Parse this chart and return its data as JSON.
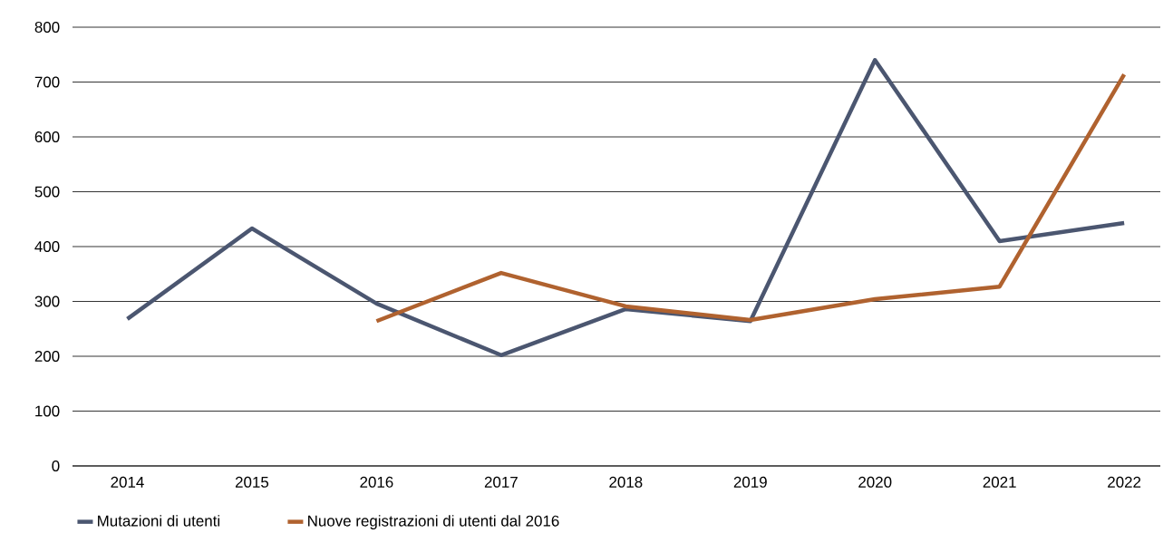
{
  "chart_data": {
    "type": "line",
    "categories": [
      "2014",
      "2015",
      "2016",
      "2017",
      "2018",
      "2019",
      "2020",
      "2021",
      "2022"
    ],
    "series": [
      {
        "name": "Mutazioni di utenti",
        "color": "#4b5670",
        "values": [
          268,
          433,
          296,
          202,
          286,
          264,
          740,
          410,
          443
        ]
      },
      {
        "name": "Nuove registrazioni di utenti dal 2016",
        "color": "#b0622f",
        "values": [
          null,
          null,
          264,
          352,
          291,
          266,
          304,
          327,
          714
        ]
      }
    ],
    "ylim": [
      0,
      800
    ],
    "yticks": [
      0,
      100,
      200,
      300,
      400,
      500,
      600,
      700,
      800
    ],
    "grid": "y",
    "legend": "bottom",
    "marker": "none",
    "line_style": "solid"
  }
}
